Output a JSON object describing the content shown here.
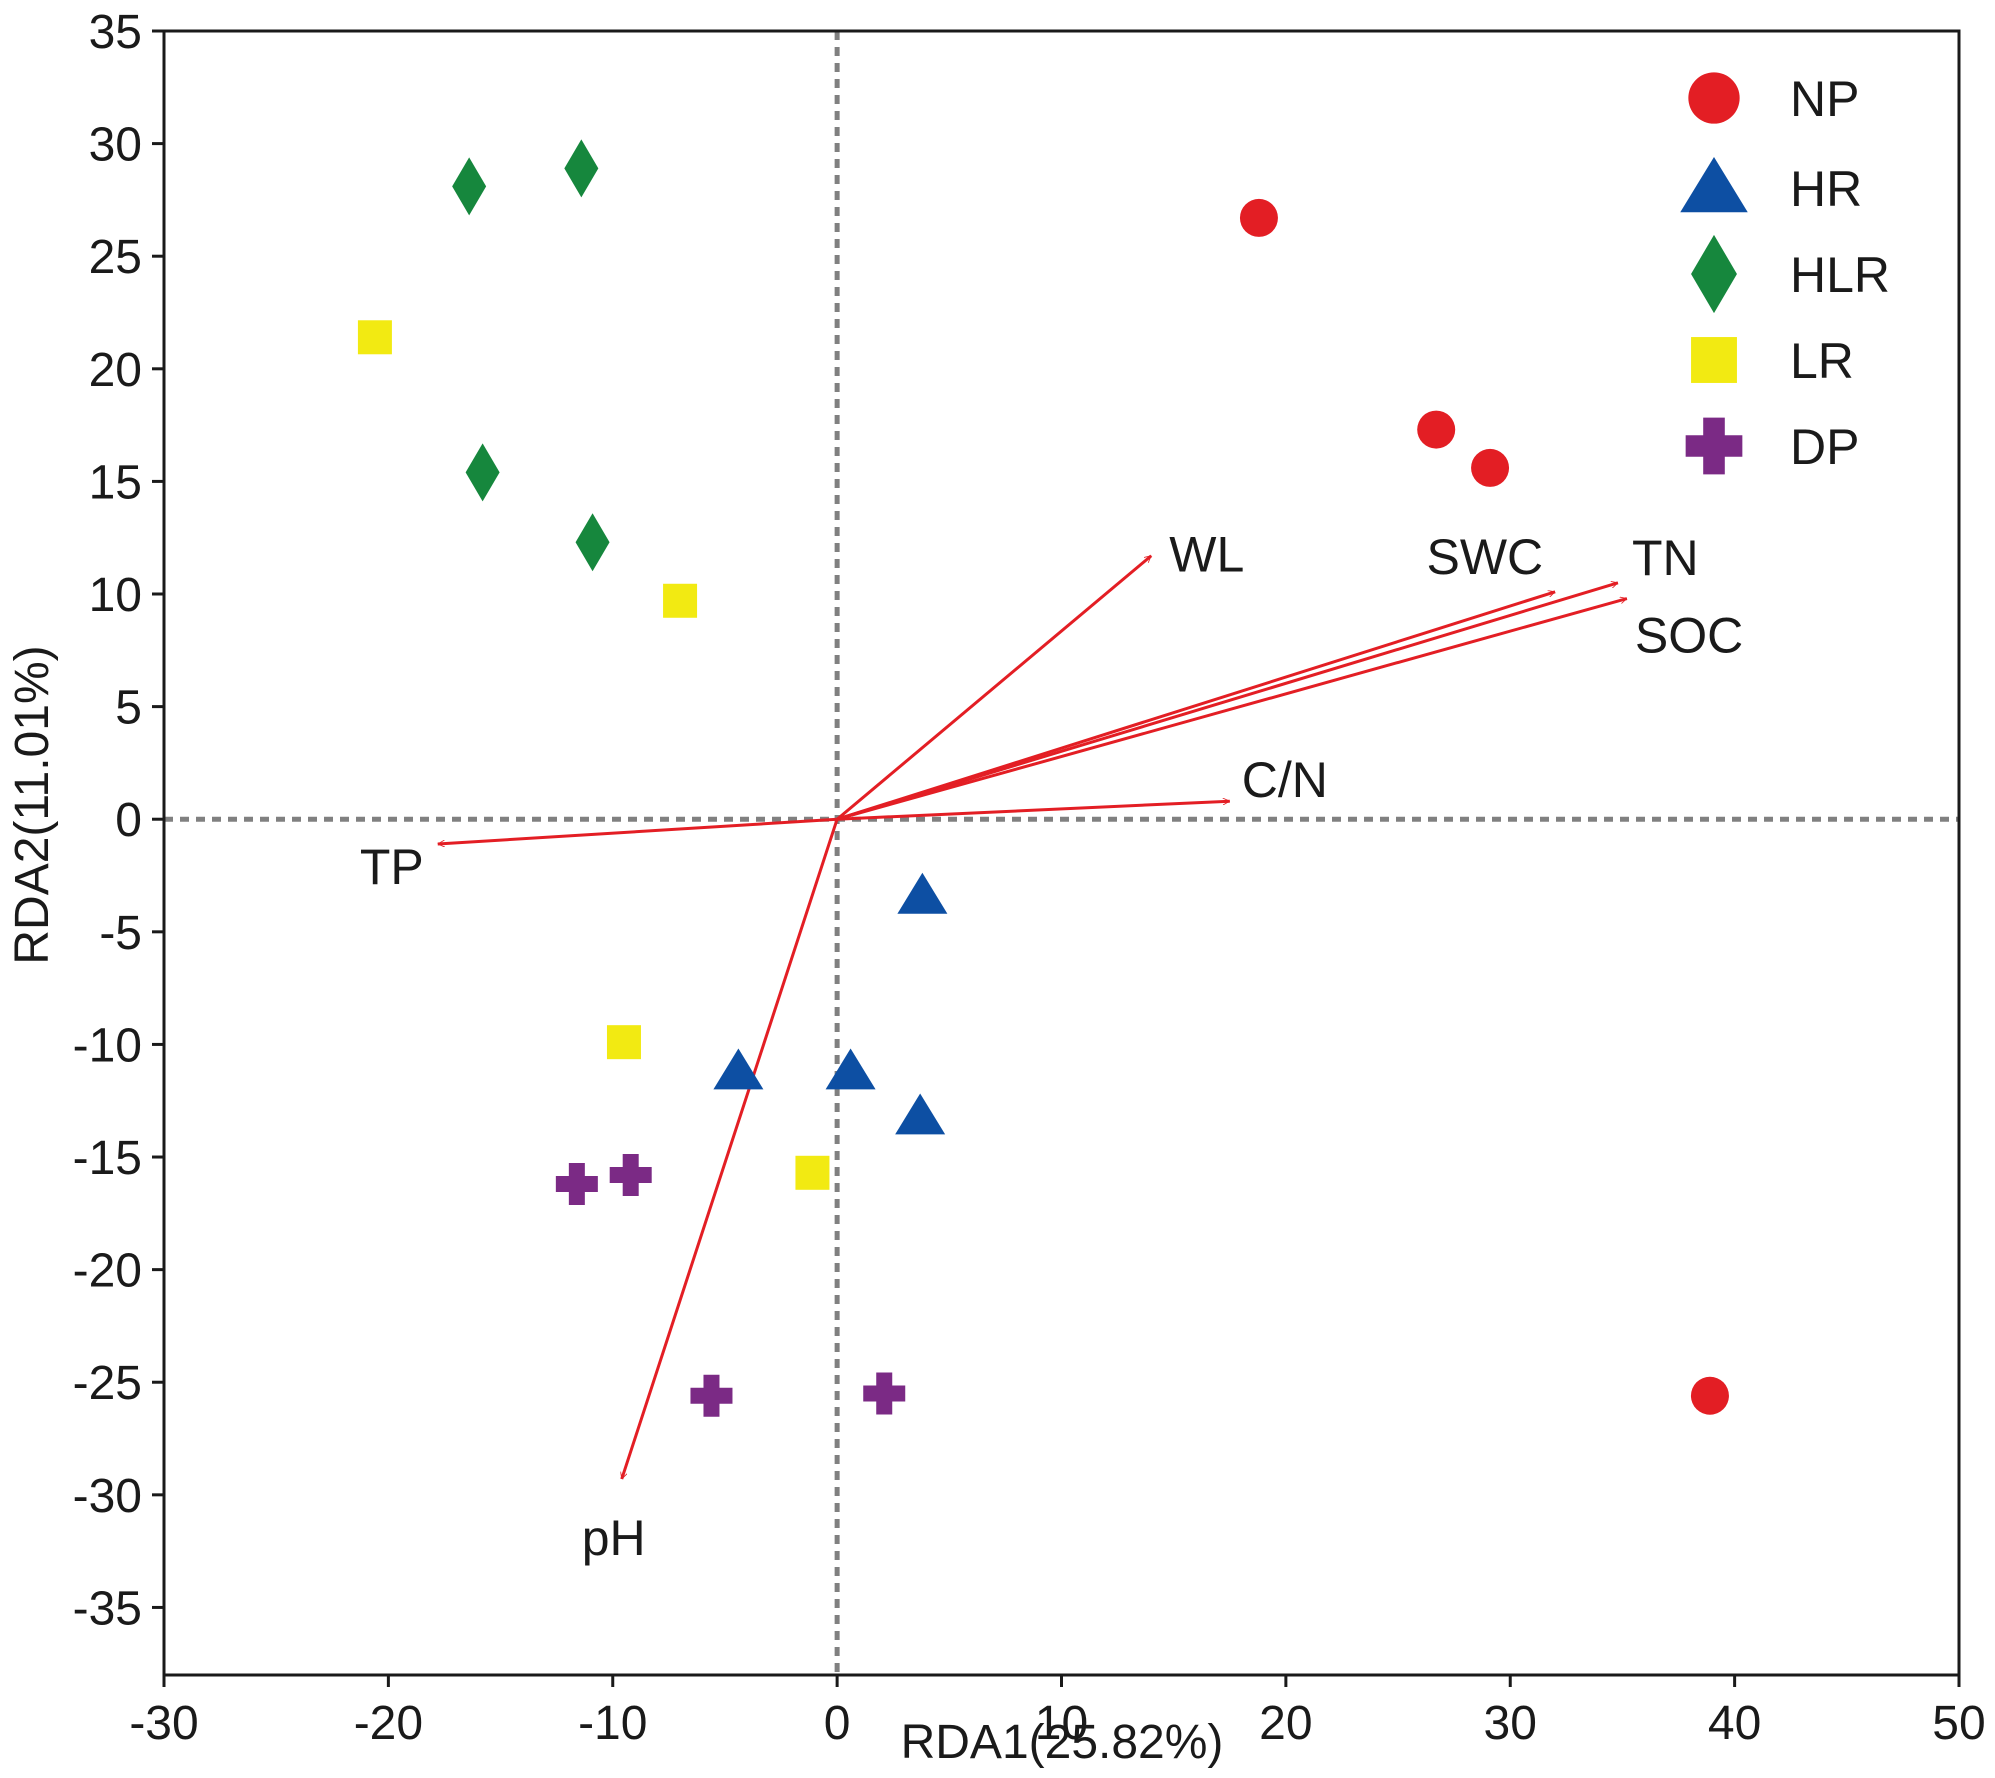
{
  "chart_data": {
    "type": "scatter",
    "subtype": "RDA biplot",
    "title": "",
    "xlabel": "RDA1(25.82%)",
    "ylabel": "RDA2(11.01%)",
    "xlim": [
      -30,
      50
    ],
    "ylim": [
      -38,
      35
    ],
    "xticks": [
      -30,
      -20,
      -10,
      0,
      10,
      20,
      30,
      40,
      50
    ],
    "yticks": [
      35,
      30,
      25,
      20,
      15,
      10,
      5,
      0,
      -5,
      -10,
      -15,
      -20,
      -25,
      -30,
      -35
    ],
    "zero_lines": "dashed",
    "legend_position": "top-right",
    "series": [
      {
        "name": "NP",
        "marker": "circle",
        "color": "#e31e24",
        "points": [
          [
            18.8,
            26.7
          ],
          [
            26.7,
            17.3
          ],
          [
            29.1,
            15.6
          ],
          [
            38.9,
            -25.6
          ]
        ]
      },
      {
        "name": "HR",
        "marker": "triangle",
        "color": "#0d4fa3",
        "points": [
          [
            3.8,
            -3.4
          ],
          [
            -4.4,
            -11.2
          ],
          [
            0.6,
            -11.2
          ],
          [
            3.7,
            -13.2
          ]
        ]
      },
      {
        "name": "HLR",
        "marker": "diamond",
        "color": "#16873d",
        "points": [
          [
            -16.4,
            28.1
          ],
          [
            -11.4,
            28.9
          ],
          [
            -15.8,
            15.4
          ],
          [
            -10.9,
            12.3
          ]
        ]
      },
      {
        "name": "LR",
        "marker": "square",
        "color": "#f2ea12",
        "points": [
          [
            -20.6,
            21.4
          ],
          [
            -7.0,
            9.7
          ],
          [
            -9.5,
            -9.9
          ],
          [
            -1.1,
            -15.7
          ]
        ]
      },
      {
        "name": "DP",
        "marker": "cross",
        "color": "#7b2a85",
        "points": [
          [
            -11.6,
            -16.2
          ],
          [
            -9.2,
            -15.8
          ],
          [
            -5.6,
            -25.6
          ],
          [
            2.1,
            -25.5
          ]
        ]
      }
    ],
    "vectors": {
      "color": "#e31e24",
      "items": [
        {
          "name": "WL",
          "x": 14.0,
          "y": 11.7
        },
        {
          "name": "SWC",
          "x": 32.0,
          "y": 10.1
        },
        {
          "name": "TN",
          "x": 34.8,
          "y": 10.5
        },
        {
          "name": "SOC",
          "x": 35.2,
          "y": 9.8
        },
        {
          "name": "C/N",
          "x": 17.5,
          "y": 0.8
        },
        {
          "name": "TP",
          "x": -17.8,
          "y": -1.1
        },
        {
          "name": "pH",
          "x": -9.6,
          "y": -29.3
        }
      ]
    }
  }
}
